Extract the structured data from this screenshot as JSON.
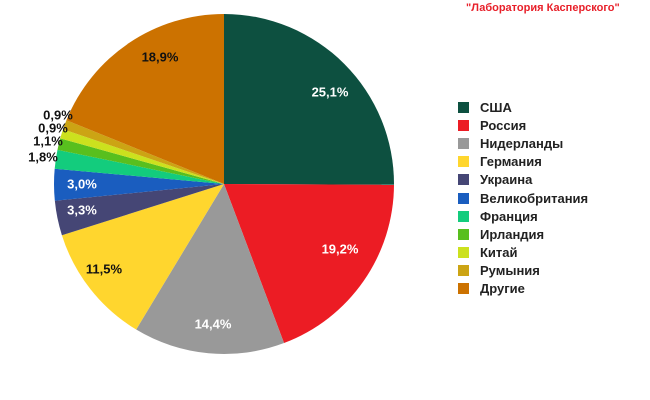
{
  "watermark": "\"Лаборатория Касперского\"",
  "chart_data": {
    "type": "pie",
    "start_angle_deg": 0,
    "direction": "clockwise",
    "legend_position": "right",
    "series": [
      {
        "name": "США",
        "value": 25.1,
        "label": "25,1%",
        "color": "#0d5040",
        "label_color": "#ffffff"
      },
      {
        "name": "Россия",
        "value": 19.2,
        "label": "19,2%",
        "color": "#ec1c24",
        "label_color": "#ffffff"
      },
      {
        "name": "Нидерланды",
        "value": 14.4,
        "label": "14,4%",
        "color": "#999999",
        "label_color": "#ffffff"
      },
      {
        "name": "Германия",
        "value": 11.5,
        "label": "11,5%",
        "color": "#ffd62e",
        "label_color": "#111111"
      },
      {
        "name": "Украина",
        "value": 3.3,
        "label": "3,3%",
        "color": "#454675",
        "label_color": "#ffffff"
      },
      {
        "name": "Великобритания",
        "value": 3.0,
        "label": "3,0%",
        "color": "#1a5dbf",
        "label_color": "#ffffff"
      },
      {
        "name": "Франция",
        "value": 1.8,
        "label": "1,8%",
        "color": "#13cc7d",
        "label_color": "#111111"
      },
      {
        "name": "Ирландия",
        "value": 1.1,
        "label": "1,1%",
        "color": "#58bf1e",
        "label_color": "#111111"
      },
      {
        "name": "Китай",
        "value": 0.9,
        "label": "0,9%",
        "color": "#cce11e",
        "label_color": "#111111"
      },
      {
        "name": "Румыния",
        "value": 0.9,
        "label": "0,9%",
        "color": "#cca414",
        "label_color": "#111111"
      },
      {
        "name": "Другие",
        "value": 18.9,
        "label": "18,9%",
        "color": "#cc7200",
        "label_color": "#111111"
      }
    ]
  }
}
